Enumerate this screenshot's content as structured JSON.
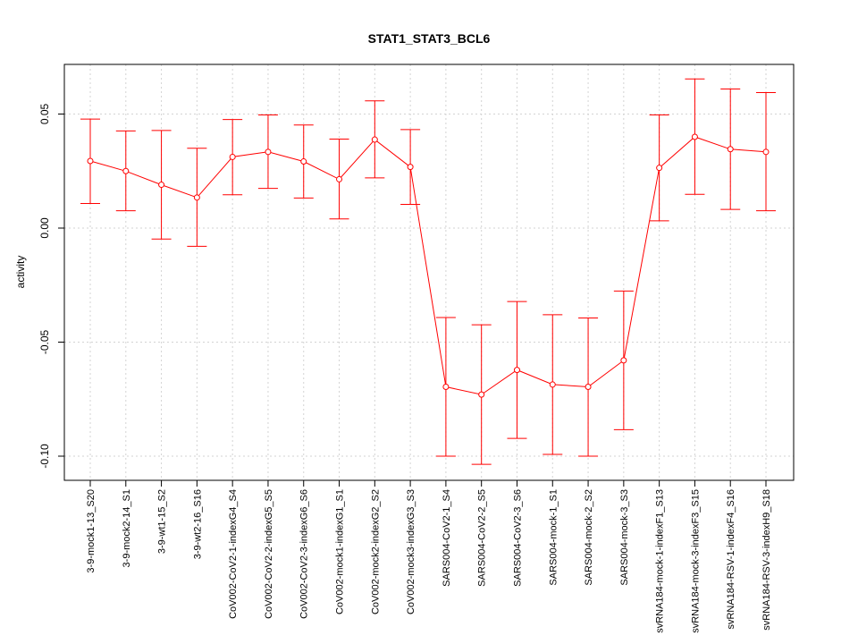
{
  "chart_data": {
    "type": "line",
    "title": "STAT1_STAT3_BCL6",
    "xlabel": "",
    "ylabel": "activity",
    "ylim": [
      -0.11,
      0.072
    ],
    "yticks": [
      -0.1,
      -0.05,
      0.0,
      0.05
    ],
    "ytick_labels": [
      "-0.10",
      "-0.05",
      "0.00",
      "0.05"
    ],
    "grid": true,
    "color": "#ff0000",
    "categories": [
      "3-9-mock1-13_S20",
      "3-9-mock2-14_S1",
      "3-9-wt1-15_S2",
      "3-9-wt2-16_S16",
      "CoV002-CoV2-1-indexG4_S4",
      "CoV002-CoV2-2-indexG5_S5",
      "CoV002-CoV2-3-indexG6_S6",
      "CoV002-mock1-indexG1_S1",
      "CoV002-mock2-indexG2_S2",
      "CoV002-mock3-indexG3_S3",
      "SARS004-CoV2-1_S4",
      "SARS004-CoV2-2_S5",
      "SARS004-CoV2-3_S6",
      "SARS004-mock-1_S1",
      "SARS004-mock-2_S2",
      "SARS004-mock-3_S3",
      "svRNA184-mock-1-indexF1_S13",
      "svRNA184-mock-3-indexF3_S15",
      "svRNA184-RSV-1-indexF4_S16",
      "svRNA184-RSV-3-indexH9_S18"
    ],
    "values": [
      0.0294,
      0.025,
      0.019,
      0.0134,
      0.0312,
      0.0334,
      0.0292,
      0.0214,
      0.0388,
      0.0268,
      -0.0696,
      -0.073,
      -0.0622,
      -0.0686,
      -0.0696,
      -0.058,
      0.0264,
      0.04,
      0.0346,
      0.0334
    ],
    "upper": [
      0.0478,
      0.0426,
      0.0428,
      0.035,
      0.0476,
      0.0496,
      0.0452,
      0.039,
      0.0558,
      0.0432,
      -0.0392,
      -0.0424,
      -0.0322,
      -0.038,
      -0.0394,
      -0.0276,
      0.0496,
      0.0654,
      0.061,
      0.0594
    ],
    "lower": [
      0.0108,
      0.0076,
      -0.0048,
      -0.008,
      0.0146,
      0.0174,
      0.0132,
      0.004,
      0.022,
      0.0104,
      -0.1,
      -0.1036,
      -0.0922,
      -0.0992,
      -0.1,
      -0.0884,
      0.0032,
      0.0148,
      0.0082,
      0.0076
    ]
  }
}
